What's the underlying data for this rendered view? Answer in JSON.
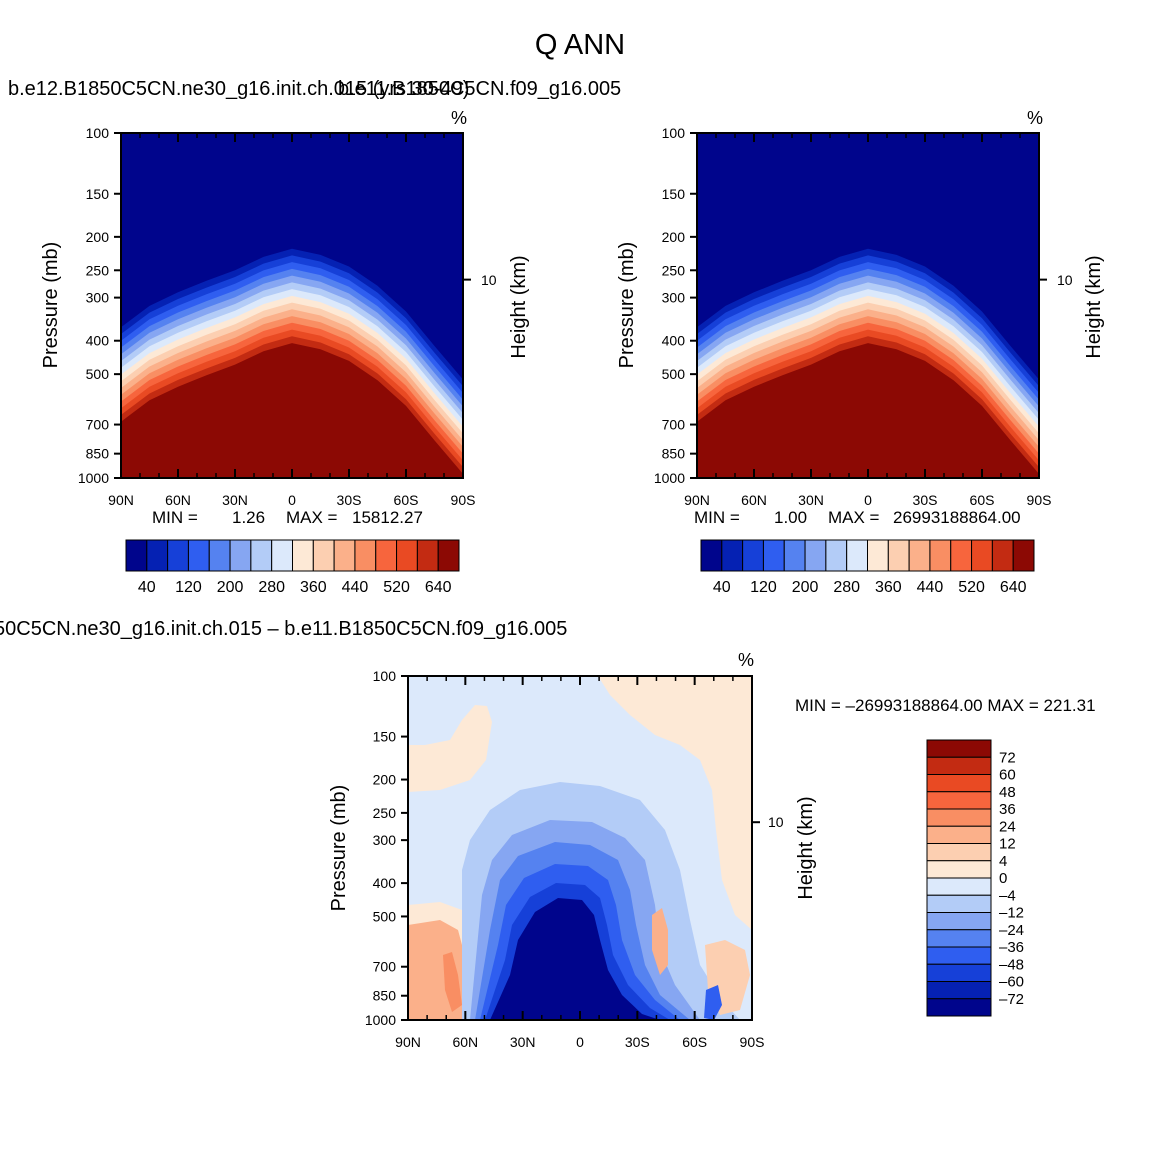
{
  "title": "Q  ANN",
  "colors": {
    "cool_scale": [
      "#00058c",
      "#0521b3",
      "#1640d8",
      "#2f5ef0",
      "#5582f0",
      "#86a6f2",
      "#b3ccf7",
      "#dce9fb"
    ],
    "warm_scale": [
      "#fde9d6",
      "#fccfb1",
      "#fbb08a",
      "#f98e63",
      "#f7653d",
      "#e94a23",
      "#c32b12",
      "#8c0904"
    ]
  },
  "charts": [
    {
      "title": "b.e12.B1850C5CN.ne30_g16.init.ch.015 (yrs 30-49)",
      "overlay_title": "b.e11.B1850C5CN.f09_g16.005",
      "units": "%",
      "ylabel": "Pressure (mb)",
      "right_label": "Height (km)",
      "right_tick": "10",
      "x_ticks": [
        "90N",
        "60N",
        "30N",
        "0",
        "30S",
        "60S",
        "90S"
      ],
      "y_ticks": [
        "100",
        "150",
        "200",
        "250",
        "300",
        "400",
        "500",
        "700",
        "850",
        "1000"
      ],
      "min_label": "MIN =",
      "min_value": "1.26",
      "max_label": "MAX =",
      "max_value": "15812.27",
      "colorbar_labels": [
        "40",
        "120",
        "200",
        "280",
        "360",
        "440",
        "520",
        "640"
      ]
    },
    {
      "title": "",
      "units": "%",
      "ylabel": "Pressure (mb)",
      "right_label": "Height (km)",
      "right_tick": "10",
      "x_ticks": [
        "90N",
        "60N",
        "30N",
        "0",
        "30S",
        "60S",
        "90S"
      ],
      "y_ticks": [
        "100",
        "150",
        "200",
        "250",
        "300",
        "400",
        "500",
        "700",
        "850",
        "1000"
      ],
      "min_label": "MIN =",
      "min_value": "1.00",
      "max_label": "MAX =",
      "max_value": "26993188864.00",
      "colorbar_labels": [
        "40",
        "120",
        "200",
        "280",
        "360",
        "440",
        "520",
        "640"
      ]
    },
    {
      "title": "50C5CN.ne30_g16.init.ch.015 – b.e11.B1850C5CN.f09_g16.005",
      "units": "%",
      "ylabel": "Pressure (mb)",
      "right_label": "Height (km)",
      "right_tick": "10",
      "x_ticks": [
        "90N",
        "60N",
        "30N",
        "0",
        "30S",
        "60S",
        "90S"
      ],
      "y_ticks": [
        "100",
        "150",
        "200",
        "250",
        "300",
        "400",
        "500",
        "700",
        "850",
        "1000"
      ],
      "minmax_text": "MIN = –26993188864.00   MAX = 221.31",
      "colorbar_labels": [
        "72",
        "60",
        "48",
        "36",
        "24",
        "12",
        "4",
        "0",
        "–4",
        "–12",
        "–24",
        "–36",
        "–48",
        "–60",
        "–72"
      ]
    }
  ],
  "chart_data": [
    {
      "type": "heatmap",
      "title": "b.e12.B1850C5CN.ne30_g16.init.ch.015 (yrs 30-49)",
      "units": "%",
      "x": [
        "90N",
        "60N",
        "30N",
        "0",
        "30S",
        "60S",
        "90S"
      ],
      "y_pressure_mb": [
        100,
        150,
        200,
        250,
        300,
        400,
        500,
        700,
        850,
        1000
      ],
      "contour_levels": [
        40,
        120,
        200,
        280,
        360,
        440,
        520,
        640
      ],
      "min": 1.26,
      "max": 15812.27,
      "boundary_high_value_pressure_mb": {
        "lat": [
          90,
          75,
          60,
          45,
          30,
          15,
          0,
          -15,
          -30,
          -45,
          -60,
          -75,
          -90
        ],
        "p": [
          600,
          520,
          475,
          440,
          410,
          375,
          355,
          370,
          400,
          455,
          540,
          680,
          850
        ]
      }
    },
    {
      "type": "heatmap",
      "title": "b.e11.B1850C5CN.f09_g16.005",
      "units": "%",
      "x": [
        "90N",
        "60N",
        "30N",
        "0",
        "30S",
        "60S",
        "90S"
      ],
      "y_pressure_mb": [
        100,
        150,
        200,
        250,
        300,
        400,
        500,
        700,
        850,
        1000
      ],
      "contour_levels": [
        40,
        120,
        200,
        280,
        360,
        440,
        520,
        640
      ],
      "min": 1.0,
      "max": 26993188864.0,
      "boundary_high_value_pressure_mb": {
        "lat": [
          90,
          75,
          60,
          45,
          30,
          15,
          0,
          -15,
          -30,
          -45,
          -60,
          -75,
          -90
        ],
        "p": [
          600,
          520,
          475,
          440,
          410,
          375,
          355,
          370,
          400,
          455,
          540,
          680,
          850
        ]
      }
    },
    {
      "type": "heatmap",
      "title": "50C5CN.ne30_g16.init.ch.015 – b.e11.B1850C5CN.f09_g16.005",
      "units": "%",
      "x": [
        "90N",
        "60N",
        "30N",
        "0",
        "30S",
        "60S",
        "90S"
      ],
      "y_pressure_mb": [
        100,
        150,
        200,
        250,
        300,
        400,
        500,
        700,
        850,
        1000
      ],
      "contour_levels": [
        -72,
        -60,
        -48,
        -36,
        -24,
        -12,
        -4,
        0,
        4,
        12,
        24,
        36,
        48,
        60,
        72
      ],
      "min": -26993188864.0,
      "max": 221.31
    }
  ]
}
